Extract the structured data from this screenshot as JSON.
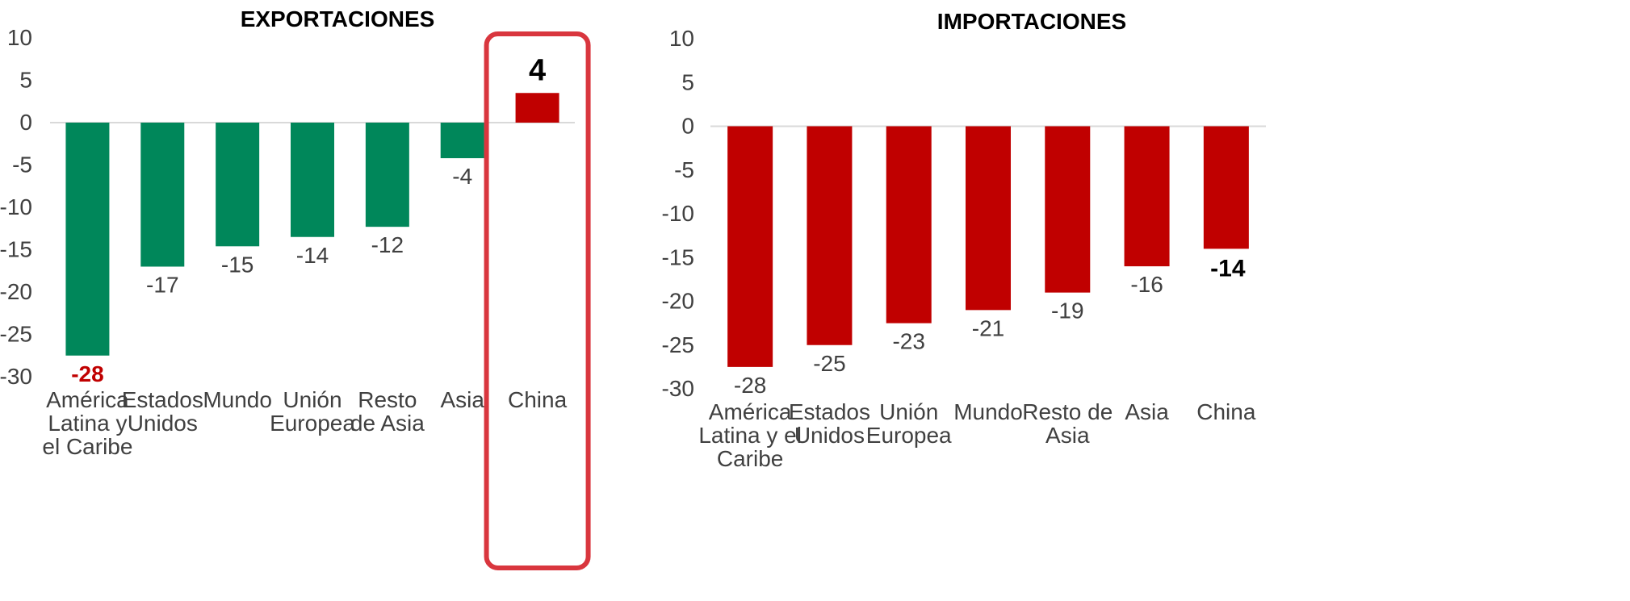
{
  "chart_data": [
    {
      "type": "bar",
      "title": "EXPORTACIONES",
      "categories": [
        "América Latina y el Caribe",
        "Estados Unidos",
        "Mundo",
        "Unión Europea",
        "Resto de Asia",
        "Asia",
        "China"
      ],
      "category_lines": [
        [
          "América",
          "Latina y",
          "el Caribe"
        ],
        [
          "Estados",
          "Unidos"
        ],
        [
          "Mundo"
        ],
        [
          "Unión",
          "Europea"
        ],
        [
          "Resto",
          "de Asia"
        ],
        [
          "Asia"
        ],
        [
          "China"
        ]
      ],
      "values": [
        -27.5,
        -17,
        -14.6,
        -13.5,
        -12.3,
        -4.2,
        3.5
      ],
      "labels": [
        "-28",
        "-17",
        "-15",
        "-14",
        "-12",
        "-4",
        "4"
      ],
      "bar_colors": [
        "#00875a",
        "#00875a",
        "#00875a",
        "#00875a",
        "#00875a",
        "#00875a",
        "#c00000"
      ],
      "label_styles": [
        "red",
        "normal",
        "normal",
        "normal",
        "normal",
        "normal",
        "big"
      ],
      "highlight_index": 6,
      "highlight_color": "#d9363e",
      "ylim": [
        -30,
        10
      ],
      "yticks": [
        10,
        5,
        0,
        -5,
        -10,
        -15,
        -20,
        -25,
        -30
      ],
      "xlabel": "",
      "ylabel": "",
      "grid": false
    },
    {
      "type": "bar",
      "title": "IMPORTACIONES",
      "categories": [
        "América Latina y el Caribe",
        "Estados Unidos",
        "Unión Europea",
        "Mundo",
        "Resto de Asia",
        "Asia",
        "China"
      ],
      "category_lines": [
        [
          "América",
          "Latina y el",
          "Caribe"
        ],
        [
          "Estados",
          "Unidos"
        ],
        [
          "Unión",
          "Europea"
        ],
        [
          "Mundo"
        ],
        [
          "Resto de",
          "Asia"
        ],
        [
          "Asia"
        ],
        [
          "China"
        ]
      ],
      "values": [
        -27.5,
        -25,
        -22.5,
        -21,
        -19,
        -16,
        -14
      ],
      "labels": [
        "-28",
        "-25",
        "-23",
        "-21",
        "-19",
        "-16",
        "-14"
      ],
      "bar_colors": [
        "#c00000",
        "#c00000",
        "#c00000",
        "#c00000",
        "#c00000",
        "#c00000",
        "#c00000"
      ],
      "label_styles": [
        "normal",
        "normal",
        "normal",
        "normal",
        "normal",
        "normal",
        "bold"
      ],
      "highlight_index": null,
      "ylim": [
        -30,
        10
      ],
      "yticks": [
        10,
        5,
        0,
        -5,
        -10,
        -15,
        -20,
        -25,
        -30
      ],
      "xlabel": "",
      "ylabel": "",
      "grid": false
    }
  ]
}
